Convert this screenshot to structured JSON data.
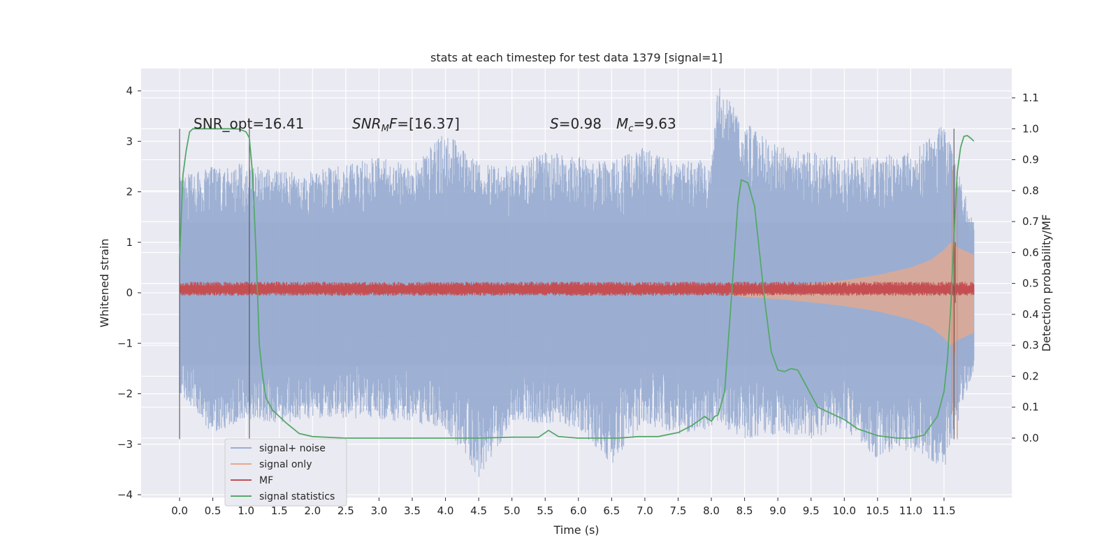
{
  "chart_data": {
    "type": "line",
    "title": "stats at each timestep for test data 1379 [signal=1]",
    "xlabel": "Time (s)",
    "ylabel": "Whitened strain",
    "ylabel_right": "Detection probability/MF",
    "xlim": [
      -0.5,
      12.5
    ],
    "ylim": [
      -4.1,
      4.4
    ],
    "ylim_right": [
      -0.19,
      1.19
    ],
    "x_ticks": [
      "0.0",
      "0.5",
      "1.0",
      "1.5",
      "2.0",
      "2.5",
      "3.0",
      "3.5",
      "4.0",
      "4.5",
      "5.0",
      "5.5",
      "6.0",
      "6.5",
      "7.0",
      "7.5",
      "8.0",
      "8.5",
      "9.0",
      "9.5",
      "10.0",
      "10.5",
      "11.0",
      "11.5"
    ],
    "y_ticks": [
      "−4",
      "−3",
      "−2",
      "−1",
      "0",
      "1",
      "2",
      "3",
      "4"
    ],
    "y_ticks_right": [
      "0.0",
      "0.1",
      "0.2",
      "0.3",
      "0.4",
      "0.5",
      "0.6",
      "0.7",
      "0.8",
      "0.9",
      "1.0",
      "1.1"
    ],
    "annotations": {
      "snr_opt": "SNR_opt=16.41",
      "snr_mf_sym": "SNR",
      "snr_mf_sub": "M",
      "snr_mf_rest": "F",
      "snr_mf_value": "=[16.37]",
      "s_sym": "S",
      "s_value": "=0.98",
      "mc_sym": "M",
      "mc_sub": "c",
      "mc_value": "=9.63"
    },
    "legend_position": "lower-left",
    "grid": true,
    "series": [
      {
        "name": "signal+ noise",
        "color": "#9aaed2",
        "description_points": "noise envelope approx ±2.5 with peaks to 4.1 at 8.1s",
        "x": [
          0.0,
          0.5,
          1.0,
          1.5,
          2.0,
          2.5,
          3.0,
          3.5,
          4.0,
          4.5,
          5.0,
          5.5,
          6.0,
          6.5,
          7.0,
          7.5,
          8.0,
          8.1,
          8.5,
          9.0,
          9.5,
          10.0,
          10.5,
          11.0,
          11.5,
          11.95
        ],
        "upper": [
          2.3,
          2.5,
          2.6,
          2.4,
          2.4,
          2.6,
          2.7,
          2.5,
          3.2,
          2.6,
          2.5,
          2.8,
          2.7,
          2.6,
          2.9,
          2.6,
          2.7,
          4.1,
          3.4,
          2.9,
          2.8,
          2.7,
          2.7,
          2.8,
          3.35,
          1.4
        ],
        "lower": [
          -2.0,
          -2.8,
          -2.5,
          -2.6,
          -2.5,
          -2.5,
          -2.5,
          -2.6,
          -2.7,
          -3.7,
          -2.6,
          -2.6,
          -2.7,
          -3.4,
          -2.6,
          -2.8,
          -2.7,
          -2.6,
          -2.9,
          -2.8,
          -2.9,
          -2.7,
          -3.3,
          -3.1,
          -3.5,
          -1.5
        ]
      },
      {
        "name": "signal only",
        "color": "#e8a88a",
        "x": [
          8.3,
          8.5,
          9.0,
          9.5,
          10.0,
          10.5,
          11.0,
          11.3,
          11.5,
          11.6,
          11.7,
          11.95
        ],
        "values": [
          0.05,
          0.08,
          0.12,
          0.18,
          0.25,
          0.35,
          0.5,
          0.65,
          0.85,
          1.0,
          0.9,
          0.75
        ]
      },
      {
        "name": "MF",
        "color": "#c44e52",
        "description_points": "narrow band around 0.07 from 0 to 11.95 s",
        "x": [
          0.0,
          11.95
        ],
        "center": [
          0.07,
          0.07
        ]
      },
      {
        "name": "signal statistics",
        "color": "#55a868",
        "x": [
          0.0,
          0.05,
          0.1,
          0.15,
          0.2,
          0.3,
          0.5,
          0.8,
          0.9,
          1.0,
          1.05,
          1.1,
          1.15,
          1.2,
          1.25,
          1.3,
          1.35,
          1.4,
          1.5,
          1.6,
          1.8,
          2.0,
          2.5,
          3.0,
          3.5,
          4.0,
          4.5,
          5.0,
          5.4,
          5.55,
          5.7,
          6.0,
          6.3,
          6.6,
          6.9,
          7.2,
          7.5,
          7.7,
          7.9,
          8.0,
          8.05,
          8.1,
          8.2,
          8.3,
          8.4,
          8.45,
          8.55,
          8.65,
          8.7,
          8.8,
          8.9,
          9.0,
          9.1,
          9.2,
          9.3,
          9.4,
          9.5,
          9.6,
          9.8,
          10.0,
          10.2,
          10.5,
          10.8,
          11.0,
          11.2,
          11.4,
          11.5,
          11.55,
          11.6,
          11.65,
          11.7,
          11.75,
          11.8,
          11.85,
          11.9,
          11.95
        ],
        "values": [
          0.58,
          0.85,
          0.93,
          0.99,
          1.0,
          1.0,
          1.0,
          1.0,
          0.999,
          0.99,
          0.97,
          0.85,
          0.6,
          0.3,
          0.2,
          0.13,
          0.11,
          0.09,
          0.07,
          0.05,
          0.015,
          0.005,
          0.0,
          0.0,
          0.0,
          0.0,
          0.0,
          0.003,
          0.003,
          0.025,
          0.005,
          0.0,
          0.0,
          0.0,
          0.005,
          0.005,
          0.018,
          0.04,
          0.07,
          0.055,
          0.07,
          0.075,
          0.15,
          0.45,
          0.76,
          0.835,
          0.825,
          0.75,
          0.65,
          0.45,
          0.28,
          0.22,
          0.215,
          0.225,
          0.22,
          0.18,
          0.14,
          0.1,
          0.08,
          0.06,
          0.03,
          0.008,
          0.0,
          0.0,
          0.01,
          0.07,
          0.15,
          0.25,
          0.42,
          0.66,
          0.86,
          0.94,
          0.975,
          0.978,
          0.97,
          0.96
        ]
      }
    ]
  }
}
